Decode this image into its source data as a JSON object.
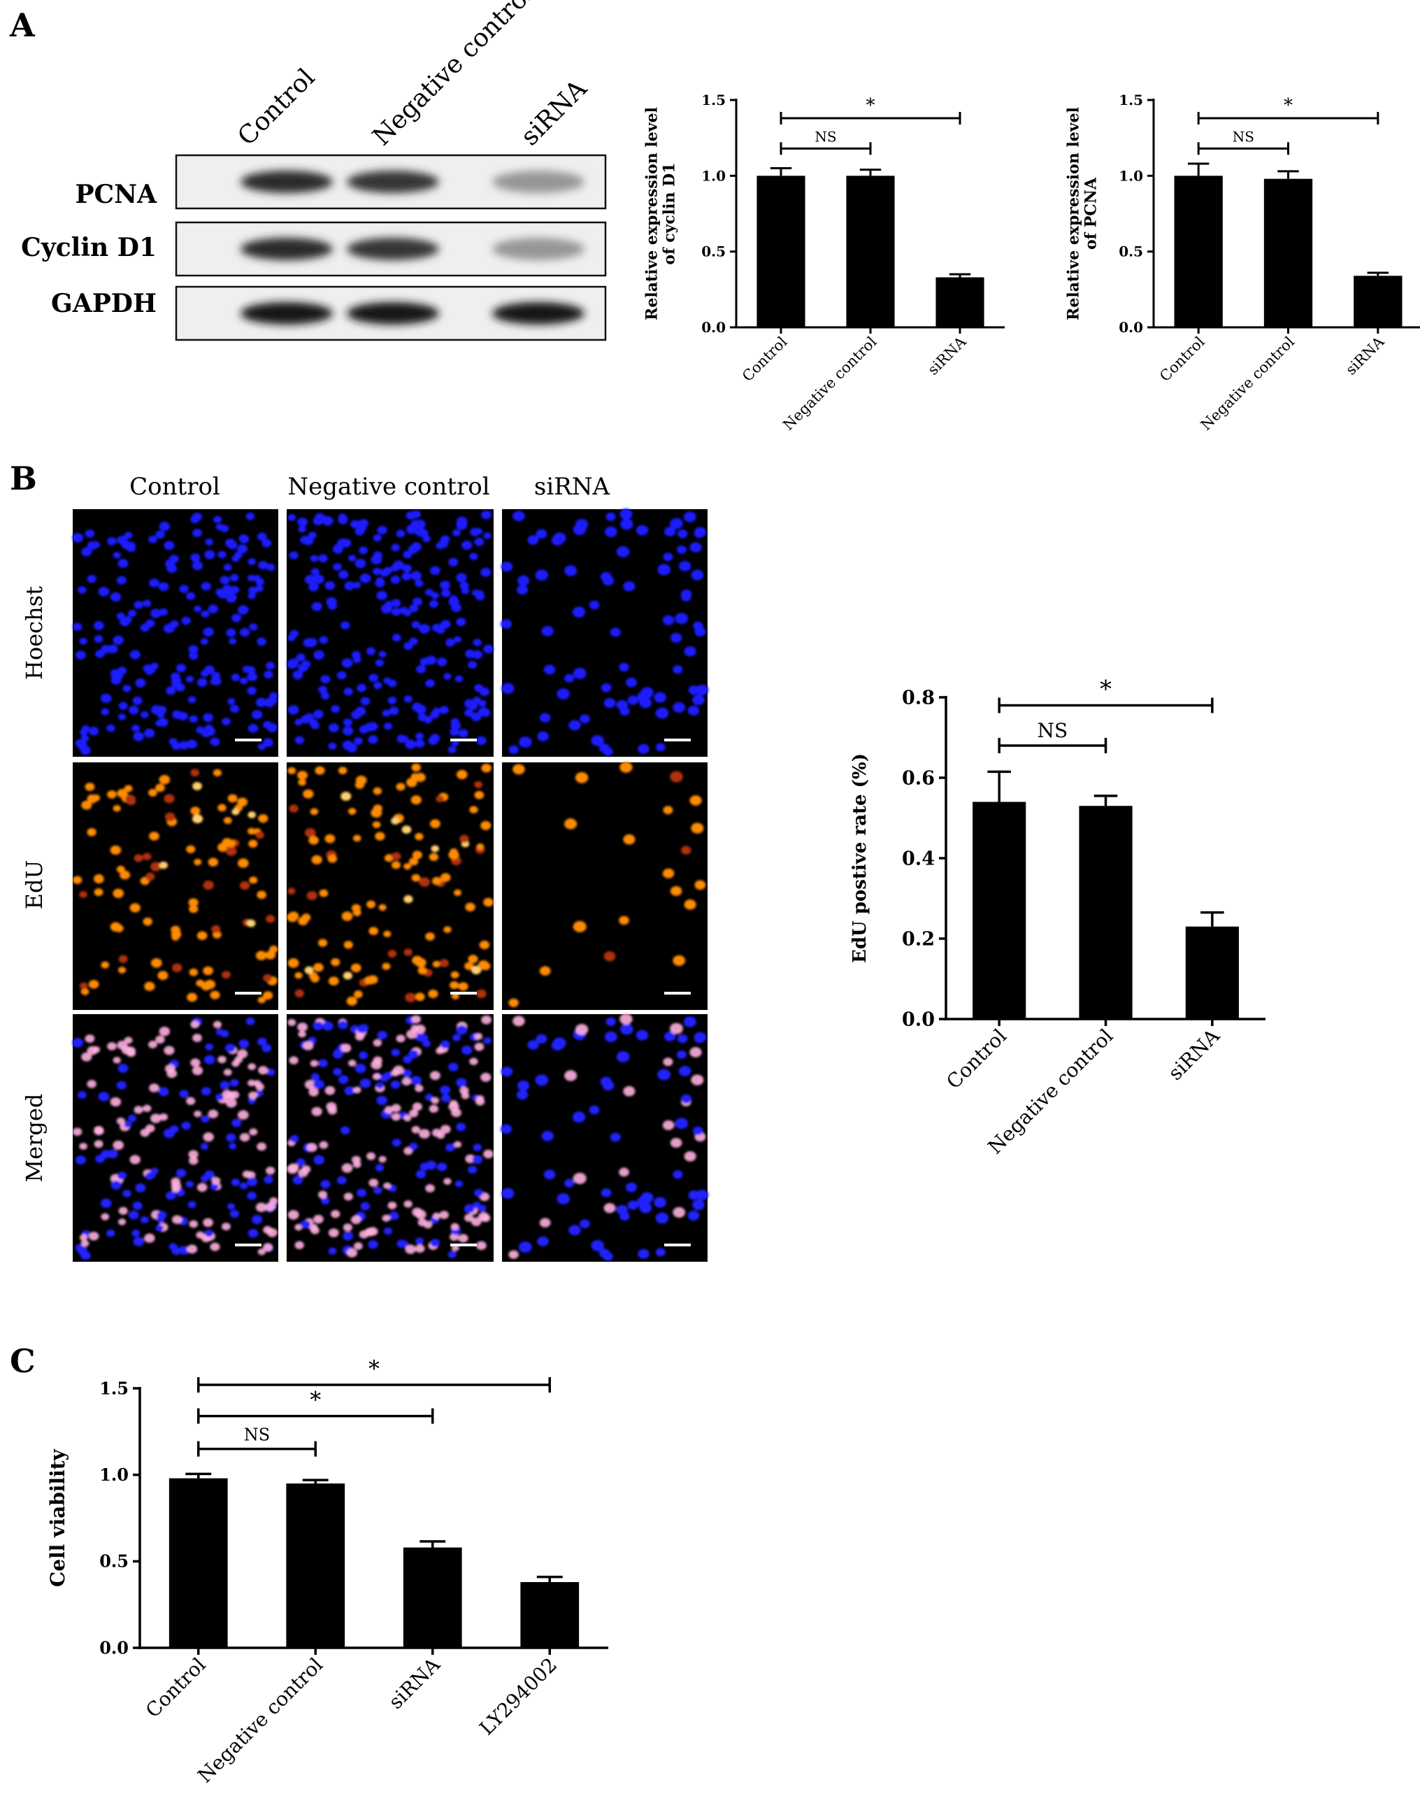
{
  "panels": {
    "a": {
      "letter": "A"
    },
    "b": {
      "letter": "B"
    },
    "c": {
      "letter": "C"
    }
  },
  "blot": {
    "lanes": [
      "Control",
      "Negative control",
      "siRNA"
    ],
    "rows": [
      {
        "label": "PCNA",
        "intensity": [
          0.85,
          0.8,
          0.35
        ]
      },
      {
        "label": "Cyclin D1",
        "intensity": [
          0.85,
          0.8,
          0.35
        ]
      },
      {
        "label": "GAPDH",
        "intensity": [
          0.95,
          0.95,
          0.95
        ]
      }
    ]
  },
  "micro": {
    "columns": [
      "Control",
      "Negative control",
      "siRNA"
    ],
    "rows": [
      "Hoechst",
      "EdU",
      "Merged"
    ],
    "colors": {
      "hoechst": "#1a1aff",
      "edu": "#ff8c00",
      "edu_dim": "#b03010",
      "merged_pink": "#ffb0e0",
      "merged_blue": "#2020ff",
      "bg": "#000000"
    }
  },
  "chart_data": [
    {
      "id": "cyclin",
      "type": "bar",
      "categories": [
        "Control",
        "Negative control",
        "siRNA"
      ],
      "values": [
        1.0,
        1.0,
        0.33
      ],
      "errors": [
        0.05,
        0.04,
        0.02
      ],
      "ylabel_lines": [
        "Relative expression level",
        "of cyclin D1"
      ],
      "ylim": [
        0,
        1.5
      ],
      "yticks": [
        "0.0",
        "0.5",
        "1.0",
        "1.5"
      ],
      "significance": [
        {
          "from": 0,
          "to": 1,
          "label": "NS",
          "level": 1.18
        },
        {
          "from": 0,
          "to": 2,
          "label": "*",
          "level": 1.38
        }
      ]
    },
    {
      "id": "pcna",
      "type": "bar",
      "categories": [
        "Control",
        "Negative control",
        "siRNA"
      ],
      "values": [
        1.0,
        0.98,
        0.34
      ],
      "errors": [
        0.08,
        0.05,
        0.02
      ],
      "ylabel_lines": [
        "Relative expression level",
        "of  PCNA"
      ],
      "ylim": [
        0,
        1.5
      ],
      "yticks": [
        "0.0",
        "0.5",
        "1.0",
        "1.5"
      ],
      "significance": [
        {
          "from": 0,
          "to": 1,
          "label": "NS",
          "level": 1.18
        },
        {
          "from": 0,
          "to": 2,
          "label": "*",
          "level": 1.38
        }
      ]
    },
    {
      "id": "edu",
      "type": "bar",
      "categories": [
        "Control",
        "Negative control",
        "siRNA"
      ],
      "values": [
        0.54,
        0.53,
        0.23
      ],
      "errors": [
        0.075,
        0.025,
        0.035
      ],
      "ylabel_lines": [
        "EdU postive rate (%)"
      ],
      "ylim": [
        0,
        0.8
      ],
      "yticks": [
        "0.0",
        "0.2",
        "0.4",
        "0.6",
        "0.8"
      ],
      "significance": [
        {
          "from": 0,
          "to": 1,
          "label": "NS",
          "level": 0.68
        },
        {
          "from": 0,
          "to": 2,
          "label": "*",
          "level": 0.78
        }
      ]
    },
    {
      "id": "viability",
      "type": "bar",
      "categories": [
        "Control",
        "Negative control",
        "siRNA",
        "LY294002"
      ],
      "values": [
        0.98,
        0.95,
        0.58,
        0.38
      ],
      "errors": [
        0.025,
        0.02,
        0.035,
        0.03
      ],
      "ylabel_lines": [
        "Cell viability"
      ],
      "ylim": [
        0,
        1.5
      ],
      "yticks": [
        "0.0",
        "0.5",
        "1.0",
        "1.5"
      ],
      "significance": [
        {
          "from": 0,
          "to": 1,
          "label": "NS",
          "level": 1.15
        },
        {
          "from": 0,
          "to": 2,
          "label": "*",
          "level": 1.34
        },
        {
          "from": 0,
          "to": 3,
          "label": "*",
          "level": 1.52
        }
      ]
    }
  ]
}
